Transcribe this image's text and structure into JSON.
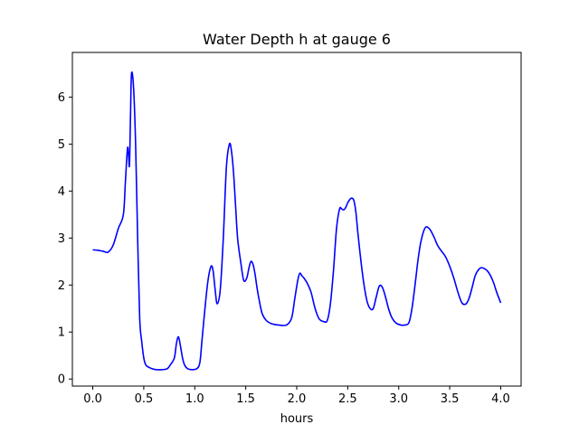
{
  "chart_data": {
    "type": "line",
    "title": "Water Depth h at gauge 6",
    "xlabel": "hours",
    "ylabel": "",
    "xlim": [
      -0.2,
      4.2
    ],
    "ylim": [
      -0.15,
      6.95
    ],
    "xticks": [
      0.0,
      0.5,
      1.0,
      1.5,
      2.0,
      2.5,
      3.0,
      3.5,
      4.0
    ],
    "xtick_labels": [
      "0.0",
      "0.5",
      "1.0",
      "1.5",
      "2.0",
      "2.5",
      "3.0",
      "3.5",
      "4.0"
    ],
    "yticks": [
      0,
      1,
      2,
      3,
      4,
      5,
      6
    ],
    "ytick_labels": [
      "0",
      "1",
      "2",
      "3",
      "4",
      "5",
      "6"
    ],
    "grid": false,
    "legend": "none",
    "series": [
      {
        "color": "#0000ff",
        "x": [
          0.0,
          0.05,
          0.1,
          0.15,
          0.2,
          0.25,
          0.3,
          0.32,
          0.34,
          0.35,
          0.36,
          0.37,
          0.38,
          0.4,
          0.42,
          0.44,
          0.46,
          0.48,
          0.5,
          0.52,
          0.55,
          0.58,
          0.62,
          0.68,
          0.73,
          0.76,
          0.8,
          0.82,
          0.84,
          0.86,
          0.88,
          0.9,
          0.93,
          0.97,
          1.02,
          1.05,
          1.07,
          1.1,
          1.13,
          1.16,
          1.18,
          1.2,
          1.22,
          1.25,
          1.28,
          1.31,
          1.34,
          1.36,
          1.38,
          1.4,
          1.42,
          1.45,
          1.48,
          1.51,
          1.53,
          1.55,
          1.57,
          1.59,
          1.61,
          1.63,
          1.66,
          1.7,
          1.75,
          1.82,
          1.9,
          1.95,
          1.98,
          2.01,
          2.03,
          2.05,
          2.07,
          2.1,
          2.14,
          2.18,
          2.22,
          2.27,
          2.3,
          2.33,
          2.36,
          2.39,
          2.42,
          2.44,
          2.46,
          2.48,
          2.5,
          2.52,
          2.54,
          2.56,
          2.58,
          2.6,
          2.63,
          2.66,
          2.69,
          2.72,
          2.75,
          2.78,
          2.81,
          2.84,
          2.87,
          2.9,
          2.93,
          2.97,
          3.02,
          3.06,
          3.1,
          3.13,
          3.16,
          3.19,
          3.22,
          3.26,
          3.3,
          3.34,
          3.38,
          3.42,
          3.46,
          3.5,
          3.54,
          3.58,
          3.62,
          3.66,
          3.69,
          3.72,
          3.75,
          3.78,
          3.81,
          3.84,
          3.87,
          3.9,
          3.93,
          3.96,
          4.0
        ],
        "y": [
          2.75,
          2.74,
          2.72,
          2.7,
          2.85,
          3.2,
          3.5,
          4.2,
          4.9,
          4.8,
          4.55,
          5.6,
          6.5,
          6.2,
          5.0,
          3.0,
          1.3,
          0.8,
          0.45,
          0.3,
          0.25,
          0.22,
          0.2,
          0.2,
          0.22,
          0.3,
          0.45,
          0.75,
          0.9,
          0.7,
          0.45,
          0.3,
          0.22,
          0.2,
          0.22,
          0.35,
          0.8,
          1.5,
          2.1,
          2.4,
          2.3,
          1.9,
          1.6,
          1.9,
          3.0,
          4.5,
          5.0,
          4.85,
          4.4,
          3.7,
          3.0,
          2.5,
          2.1,
          2.15,
          2.35,
          2.5,
          2.45,
          2.25,
          1.95,
          1.7,
          1.4,
          1.25,
          1.18,
          1.15,
          1.15,
          1.3,
          1.7,
          2.1,
          2.25,
          2.2,
          2.15,
          2.05,
          1.85,
          1.5,
          1.28,
          1.22,
          1.25,
          1.6,
          2.3,
          3.2,
          3.62,
          3.62,
          3.6,
          3.65,
          3.75,
          3.82,
          3.85,
          3.8,
          3.55,
          3.1,
          2.5,
          2.0,
          1.65,
          1.5,
          1.5,
          1.75,
          1.98,
          1.95,
          1.75,
          1.5,
          1.32,
          1.2,
          1.15,
          1.15,
          1.2,
          1.5,
          2.0,
          2.55,
          2.95,
          3.22,
          3.2,
          3.05,
          2.85,
          2.72,
          2.6,
          2.4,
          2.15,
          1.85,
          1.62,
          1.6,
          1.72,
          1.95,
          2.2,
          2.32,
          2.37,
          2.35,
          2.3,
          2.2,
          2.05,
          1.85,
          1.62
        ]
      }
    ]
  }
}
